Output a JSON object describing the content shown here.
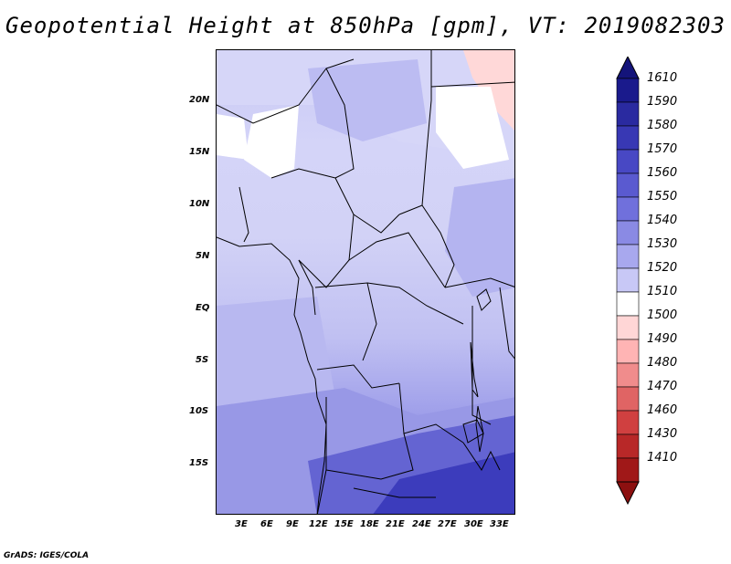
{
  "title": "Geopotential Height at 850hPa [gpm], VT: 2019082303",
  "footer": "GrADS: IGES/COLA",
  "lat_labels": [
    "20N",
    "15N",
    "10N",
    "5N",
    "EQ",
    "5S",
    "10S",
    "15S"
  ],
  "lon_labels": [
    "3E",
    "6E",
    "9E",
    "12E",
    "15E",
    "18E",
    "21E",
    "24E",
    "27E",
    "30E",
    "33E"
  ],
  "colorbar": {
    "levels": [
      "1610",
      "1590",
      "1580",
      "1570",
      "1560",
      "1550",
      "1540",
      "1530",
      "1520",
      "1510",
      "1500",
      "1490",
      "1480",
      "1470",
      "1460",
      "1430",
      "1410"
    ],
    "colors": [
      "#1a1a8c",
      "#2a2aa0",
      "#3838b4",
      "#4848c4",
      "#5a5ad0",
      "#7070dc",
      "#8a8ae4",
      "#a8a8ee",
      "#c8c8f6",
      "#ffffff",
      "#ffd6d6",
      "#ffb4b4",
      "#f08c8c",
      "#e06464",
      "#d04040",
      "#b82828",
      "#a01818"
    ],
    "top_color": "#14147a",
    "bottom_color": "#8c1010"
  }
}
